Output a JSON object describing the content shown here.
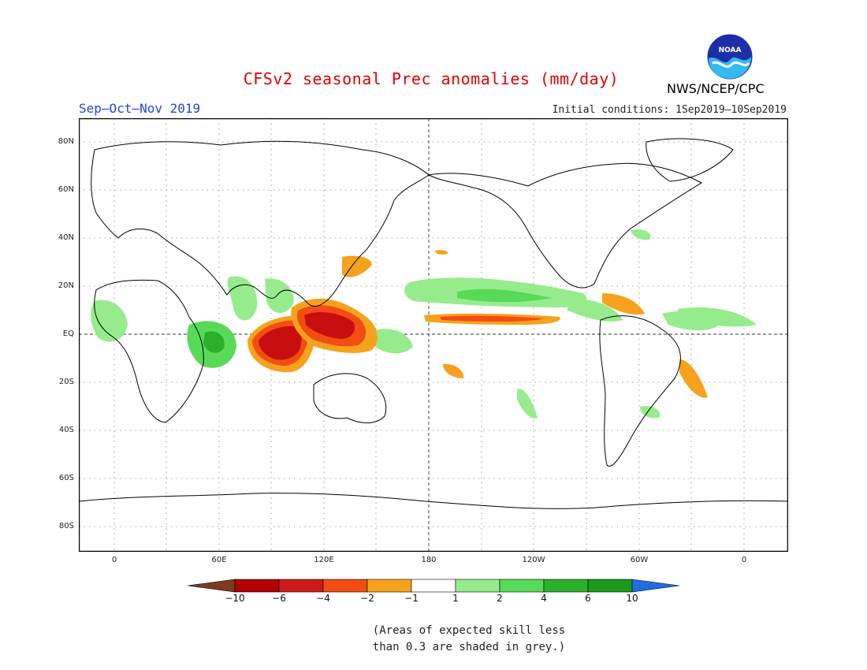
{
  "header": {
    "title": "CFSv2 seasonal Prec anomalies (mm/day)",
    "season": "Sep–Oct–Nov 2019",
    "initial_conditions": "Initial conditions: 1Sep2019–10Sep2019",
    "agency": "NWS/NCEP/CPC",
    "logo_text": "NOAA"
  },
  "map": {
    "lat_labels": [
      "80N",
      "60N",
      "40N",
      "20N",
      "EQ",
      "20S",
      "40S",
      "60S",
      "80S"
    ],
    "lon_labels": [
      "0",
      "60E",
      "120E",
      "180",
      "120W",
      "60W",
      "0"
    ],
    "projection": "cylindrical equidistant",
    "grid": "dotted",
    "center_meridian_label": "180"
  },
  "colorbar": {
    "labels": [
      "−10",
      "−6",
      "−4",
      "−2",
      "−1",
      "1",
      "2",
      "4",
      "6",
      "10"
    ],
    "colors": [
      "#7a3b1e",
      "#b00000",
      "#cc1a1a",
      "#f24e14",
      "#f7a21c",
      "#ffffff",
      "#96ec8c",
      "#58da58",
      "#2cb02c",
      "#1b9a1b",
      "#1e6fe0"
    ]
  },
  "note": {
    "line1": "(Areas of expected skill less",
    "line2": "than 0.3 are shaded in grey.)"
  },
  "colors": {
    "title": "#e00000",
    "season": "#2244dd",
    "deficit_strong": "#c80f0f",
    "deficit_moderate": "#f24e14",
    "deficit_weak": "#f7a21c",
    "surplus_weak": "#96ec8c",
    "surplus_moderate": "#58da58",
    "surplus_strong": "#2cb02c"
  }
}
